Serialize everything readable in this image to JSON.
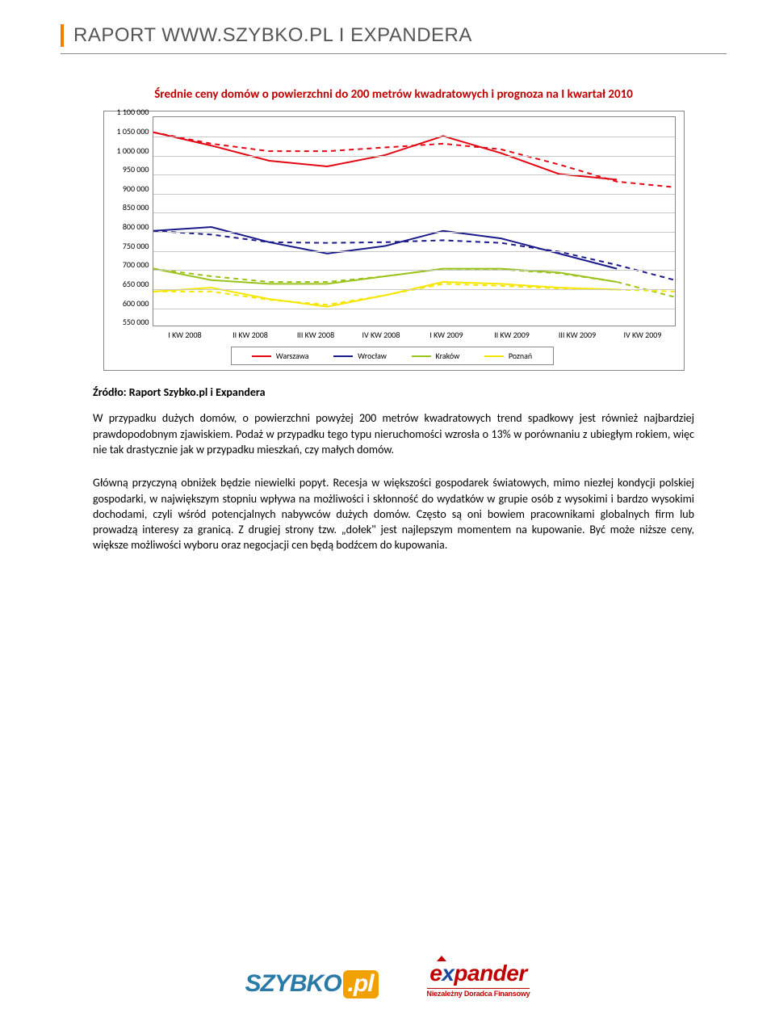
{
  "header": {
    "title": "RAPORT WWW.SZYBKO.PL I EXPANDERA"
  },
  "chart": {
    "type": "line",
    "title": "Średnie ceny domów o powierzchni do 200 metrów kwadratowych i prognoza na I kwartał 2010",
    "ylim": [
      550000,
      1100000
    ],
    "ytick_step": 50000,
    "y_ticks": [
      "1 100 000",
      "1 050 000",
      "1 000 000",
      "950 000",
      "900 000",
      "850 000",
      "800 000",
      "750 000",
      "700 000",
      "650 000",
      "600 000",
      "550 000"
    ],
    "x_labels": [
      "I KW 2008",
      "II KW 2008",
      "III KW 2008",
      "IV KW 2008",
      "I KW 2009",
      "II KW 2009",
      "III KW 2009",
      "IV KW 2009"
    ],
    "grid_color": "#c8c8c8",
    "border_color": "#888888",
    "background_color": "#ffffff",
    "line_width": 2,
    "dash_pattern": "6 5",
    "tick_fontsize": 10,
    "series": [
      {
        "name": "Warszawa",
        "color": "#e30613",
        "solid": [
          1060000,
          1025000,
          985000,
          970000,
          1000000,
          1050000,
          1005000,
          950000,
          935000
        ],
        "dashed": [
          1060000,
          1030000,
          1010000,
          1010000,
          1020000,
          1030000,
          1015000,
          975000,
          930000,
          915000
        ]
      },
      {
        "name": "Wrocław",
        "color": "#1a1a8a",
        "solid": [
          800000,
          810000,
          770000,
          740000,
          760000,
          800000,
          780000,
          740000,
          700000
        ],
        "dashed": [
          800000,
          790000,
          770000,
          768000,
          770000,
          775000,
          768000,
          745000,
          710000,
          670000
        ]
      },
      {
        "name": "Kraków",
        "color": "#9ac31c",
        "solid": [
          700000,
          670000,
          660000,
          660000,
          680000,
          700000,
          700000,
          690000,
          665000
        ],
        "dashed": [
          700000,
          680000,
          665000,
          665000,
          680000,
          700000,
          698000,
          688000,
          665000,
          625000
        ]
      },
      {
        "name": "Poznań",
        "color": "#f5e600",
        "solid": [
          640000,
          650000,
          620000,
          600000,
          630000,
          665000,
          660000,
          650000,
          645000
        ],
        "dashed": [
          640000,
          640000,
          618000,
          605000,
          630000,
          660000,
          655000,
          648000,
          645000,
          640000
        ]
      }
    ],
    "legend": [
      "Warszawa",
      "Wrocław",
      "Kraków",
      "Poznań"
    ]
  },
  "source_label": "Źródło: Raport Szybko.pl i Expandera",
  "paragraphs": [
    "W przypadku dużych domów, o powierzchni powyżej 200 metrów kwadratowych trend spadkowy jest również najbardziej prawdopodobnym zjawiskiem. Podaż w przypadku tego typu nieruchomości wzrosła o 13% w porównaniu z ubiegłym rokiem, więc nie tak drastycznie jak w przypadku mieszkań, czy małych domów.",
    "Główną przyczyną obniżek będzie niewielki popyt. Recesja w większości gospodarek światowych, mimo niezłej kondycji polskiej gospodarki, w największym stopniu wpływa na możliwości i skłonność do wydatków w grupie osób z wysokimi i bardzo wysokimi dochodami, czyli wśród potencjalnych nabywców dużych domów. Często są oni bowiem pracownikami globalnych firm lub prowadzą interesy za granicą. Z drugiej strony tzw. „dołek\" jest najlepszym momentem na kupowanie. Być może niższe ceny, większe możliwości wyboru oraz negocjacji cen będą bodźcem do kupowania."
  ],
  "footer": {
    "szybko": {
      "main": "SZYBKO",
      "suffix": ".pl"
    },
    "expander": {
      "main_pre": "e",
      "main_x": "x",
      "main_post": "pander",
      "sub": "Niezależny Doradca Finansowy"
    }
  }
}
